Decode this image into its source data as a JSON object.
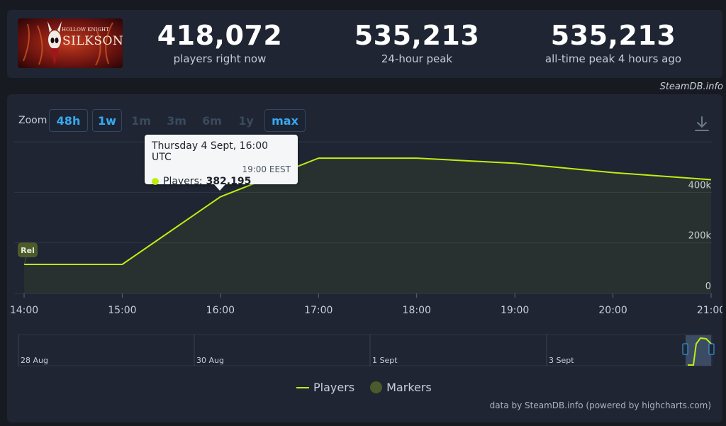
{
  "header": {
    "game_logo_text_top": "HOLLOW KNIGHT",
    "game_logo_text_main": "SILKSONG",
    "stats": [
      {
        "value": "418,072",
        "label": "players right now"
      },
      {
        "value": "535,213",
        "label": "24-hour peak"
      },
      {
        "value": "535,213",
        "label": "all-time peak 4 hours ago"
      }
    ],
    "credit": "SteamDB.info"
  },
  "zoom": {
    "label": "Zoom",
    "buttons": [
      {
        "label": "48h",
        "active": true
      },
      {
        "label": "1w",
        "active": true
      },
      {
        "label": "1m",
        "active": false
      },
      {
        "label": "3m",
        "active": false
      },
      {
        "label": "6m",
        "active": false
      },
      {
        "label": "1y",
        "active": false
      },
      {
        "label": "max",
        "active": true
      }
    ]
  },
  "tooltip": {
    "title": "Thursday 4 Sept, 16:00 UTC",
    "subtitle": "19:00 EEST",
    "series_label": "Players:",
    "value": "382,195"
  },
  "legend": {
    "players": "Players",
    "markers": "Markers"
  },
  "footer_credit": "data by SteamDB.info (powered by highcharts.com)",
  "colors": {
    "line": "#beee11",
    "marker": "#4d5a2c",
    "accent": "#39a9f1"
  },
  "chart_data": {
    "type": "line",
    "x": [
      "14:00",
      "15:00",
      "16:00",
      "17:00",
      "18:00",
      "19:00",
      "20:00",
      "21:00"
    ],
    "series": [
      {
        "name": "Players",
        "values": [
          115000,
          115000,
          382195,
          535213,
          535213,
          515000,
          478000,
          450000
        ]
      }
    ],
    "y_ticks": [
      "0",
      "200k",
      "400k"
    ],
    "ylim": [
      0,
      600000
    ],
    "grid": true,
    "legend": "bottom-center",
    "markers": [
      {
        "label": "Rel",
        "x": "14:00"
      }
    ],
    "navigator_labels": [
      "28 Aug",
      "30 Aug",
      "1 Sept",
      "3 Sept"
    ]
  }
}
